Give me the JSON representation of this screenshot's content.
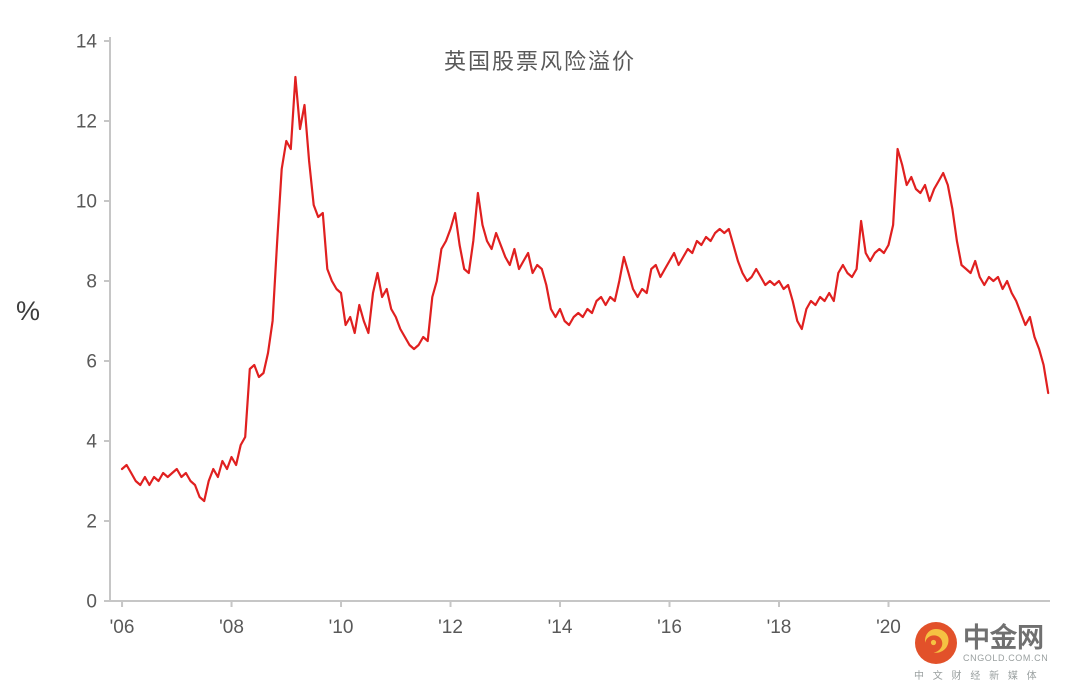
{
  "chart": {
    "title": "英国股票风险溢价",
    "y_unit": "%"
  },
  "logo": {
    "name": "中金网",
    "domain": "CNGOLD.COM.CN",
    "tagline": "中 文 财 经 新 媒 体"
  },
  "chart_data": {
    "type": "line",
    "title": "英国股票风险溢价",
    "xlabel": "",
    "ylabel": "%",
    "ylim": [
      0,
      14
    ],
    "xlim": [
      2005.78,
      2022.95
    ],
    "grid": false,
    "legend": "none",
    "line_color": "#e02020",
    "axis_color": "#c6c6c6",
    "tick_label_color": "#595959",
    "y_ticks": [
      0,
      2,
      4,
      6,
      8,
      10,
      12,
      14
    ],
    "x_ticks": [
      {
        "year": 2006,
        "label": "'06"
      },
      {
        "year": 2008,
        "label": "'08"
      },
      {
        "year": 2010,
        "label": "'10"
      },
      {
        "year": 2012,
        "label": "'12"
      },
      {
        "year": 2014,
        "label": "'14"
      },
      {
        "year": 2016,
        "label": "'16"
      },
      {
        "year": 2018,
        "label": "'18"
      },
      {
        "year": 2020,
        "label": "'20"
      }
    ],
    "series": [
      {
        "name": "英国股票风险溢价",
        "x_start": 2006.0,
        "x_step_years": 0.0833333,
        "values": [
          3.3,
          3.4,
          3.2,
          3.0,
          2.9,
          3.1,
          2.9,
          3.1,
          3.0,
          3.2,
          3.1,
          3.2,
          3.3,
          3.1,
          3.2,
          3.0,
          2.9,
          2.6,
          2.5,
          3.0,
          3.3,
          3.1,
          3.5,
          3.3,
          3.6,
          3.4,
          3.9,
          4.1,
          5.8,
          5.9,
          5.6,
          5.7,
          6.2,
          7.0,
          9.0,
          10.8,
          11.5,
          11.3,
          13.1,
          11.8,
          12.4,
          11.0,
          9.9,
          9.6,
          9.7,
          8.3,
          8.0,
          7.8,
          7.7,
          6.9,
          7.1,
          6.7,
          7.4,
          7.0,
          6.7,
          7.7,
          8.2,
          7.6,
          7.8,
          7.3,
          7.1,
          6.8,
          6.6,
          6.4,
          6.3,
          6.4,
          6.6,
          6.5,
          7.6,
          8.0,
          8.8,
          9.0,
          9.3,
          9.7,
          8.9,
          8.3,
          8.2,
          9.0,
          10.2,
          9.4,
          9.0,
          8.8,
          9.2,
          8.9,
          8.6,
          8.4,
          8.8,
          8.3,
          8.5,
          8.7,
          8.2,
          8.4,
          8.3,
          7.9,
          7.3,
          7.1,
          7.3,
          7.0,
          6.9,
          7.1,
          7.2,
          7.1,
          7.3,
          7.2,
          7.5,
          7.6,
          7.4,
          7.6,
          7.5,
          8.0,
          8.6,
          8.2,
          7.8,
          7.6,
          7.8,
          7.7,
          8.3,
          8.4,
          8.1,
          8.3,
          8.5,
          8.7,
          8.4,
          8.6,
          8.8,
          8.7,
          9.0,
          8.9,
          9.1,
          9.0,
          9.2,
          9.3,
          9.2,
          9.3,
          8.9,
          8.5,
          8.2,
          8.0,
          8.1,
          8.3,
          8.1,
          7.9,
          8.0,
          7.9,
          8.0,
          7.8,
          7.9,
          7.5,
          7.0,
          6.8,
          7.3,
          7.5,
          7.4,
          7.6,
          7.5,
          7.7,
          7.5,
          8.2,
          8.4,
          8.2,
          8.1,
          8.3,
          9.5,
          8.7,
          8.5,
          8.7,
          8.8,
          8.7,
          8.9,
          9.4,
          11.3,
          10.9,
          10.4,
          10.6,
          10.3,
          10.2,
          10.4,
          10.0,
          10.3,
          10.5,
          10.7,
          10.4,
          9.8,
          9.0,
          8.4,
          8.3,
          8.2,
          8.5,
          8.1,
          7.9,
          8.1,
          8.0,
          8.1,
          7.8,
          8.0,
          7.7,
          7.5,
          7.2,
          6.9,
          7.1,
          6.6,
          6.3,
          5.9,
          5.2
        ]
      }
    ]
  }
}
